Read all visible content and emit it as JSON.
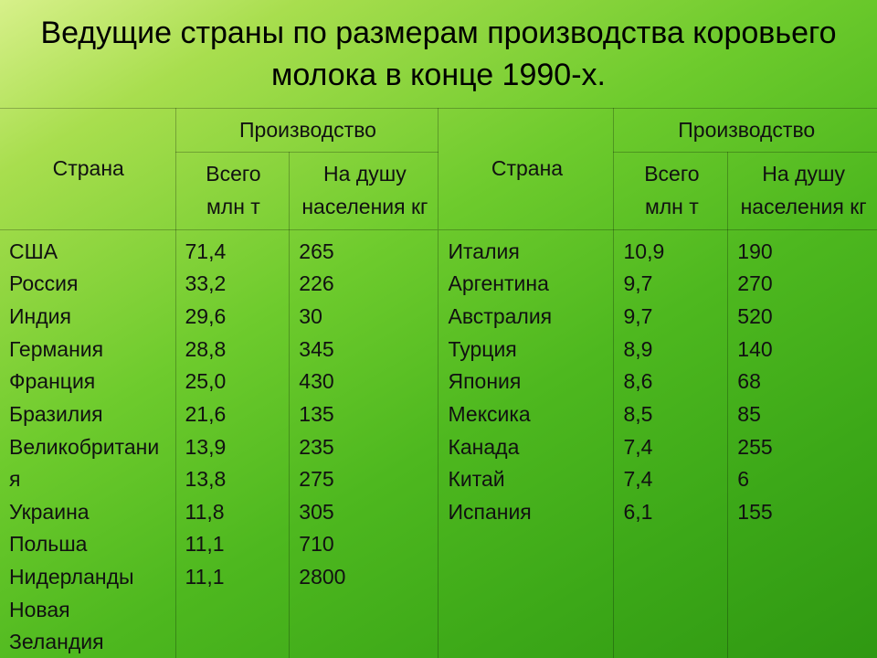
{
  "title": "Ведущие страны по размерам производства коровьего молока в конце 1990-х.",
  "headers": {
    "country": "Страна",
    "production": "Производство",
    "total": "Всего млн т",
    "per_capita": "На душу населения кг"
  },
  "left": {
    "countries": "США\nРоссия\nИндия\nГермания\nФранция\nБразилия\nВеликобритани\n    я\nУкраина\nПольша\nНидерланды\nНовая\n    Зеландия",
    "totals": "71,4\n33,2\n29,6\n28,8\n25,0\n21,6\n13,9\n13,8\n11,8\n11,1\n11,1",
    "percap": "265\n226\n30\n345\n430\n135\n235\n275\n305\n710\n2800"
  },
  "right": {
    "countries": "Италия\nАргентина\nАвстралия\nТурция\nЯпония\nМексика\nКанада\nКитай\nИспания",
    "totals": "10,9\n9,7\n9,7\n8,9\n8,6\n8,5\n7,4\n7,4\n6,1",
    "percap": "190\n270\n520\n140\n68\n85\n255\n6\n155"
  },
  "styling": {
    "slide_size": [
      960,
      720
    ],
    "background_gradient": [
      "#d7f08a",
      "#a8de4e",
      "#6ecb2d",
      "#4eb81f",
      "#3ca818",
      "#2f9812"
    ],
    "title_fontsize": 34,
    "cell_fontsize": 23,
    "border_color": "rgba(0,0,0,0.25)",
    "font_family": "Arial"
  }
}
